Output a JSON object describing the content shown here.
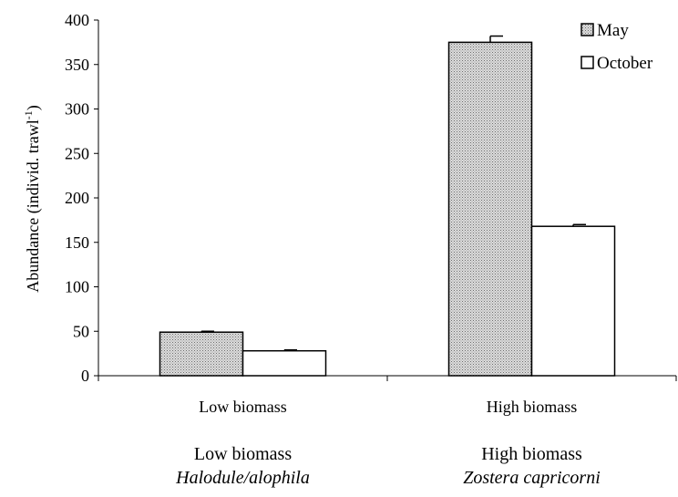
{
  "chart_data": {
    "type": "bar",
    "ylabel": "Abundance (individ. trawl",
    "ylabel_sup": "-1",
    "ylabel_close": ")",
    "ylim": [
      0,
      400
    ],
    "ytick_step": 50,
    "y_ticks": [
      "0",
      "50",
      "100",
      "150",
      "200",
      "250",
      "300",
      "350",
      "400"
    ],
    "categories": [
      "Low biomass",
      "High biomass"
    ],
    "category_groups": [
      {
        "line1": "Low biomass",
        "line2": "Halodule/alophila"
      },
      {
        "line1": "High biomass",
        "line2": "Zostera capricorni"
      }
    ],
    "series": [
      {
        "name": "May",
        "values": [
          49,
          375
        ],
        "errors": [
          1,
          7
        ],
        "fill": "pattern-dots"
      },
      {
        "name": "October",
        "values": [
          28,
          168
        ],
        "errors": [
          1,
          2
        ],
        "fill": "#ffffff"
      }
    ],
    "legend_position": "top-right",
    "grid": false
  }
}
